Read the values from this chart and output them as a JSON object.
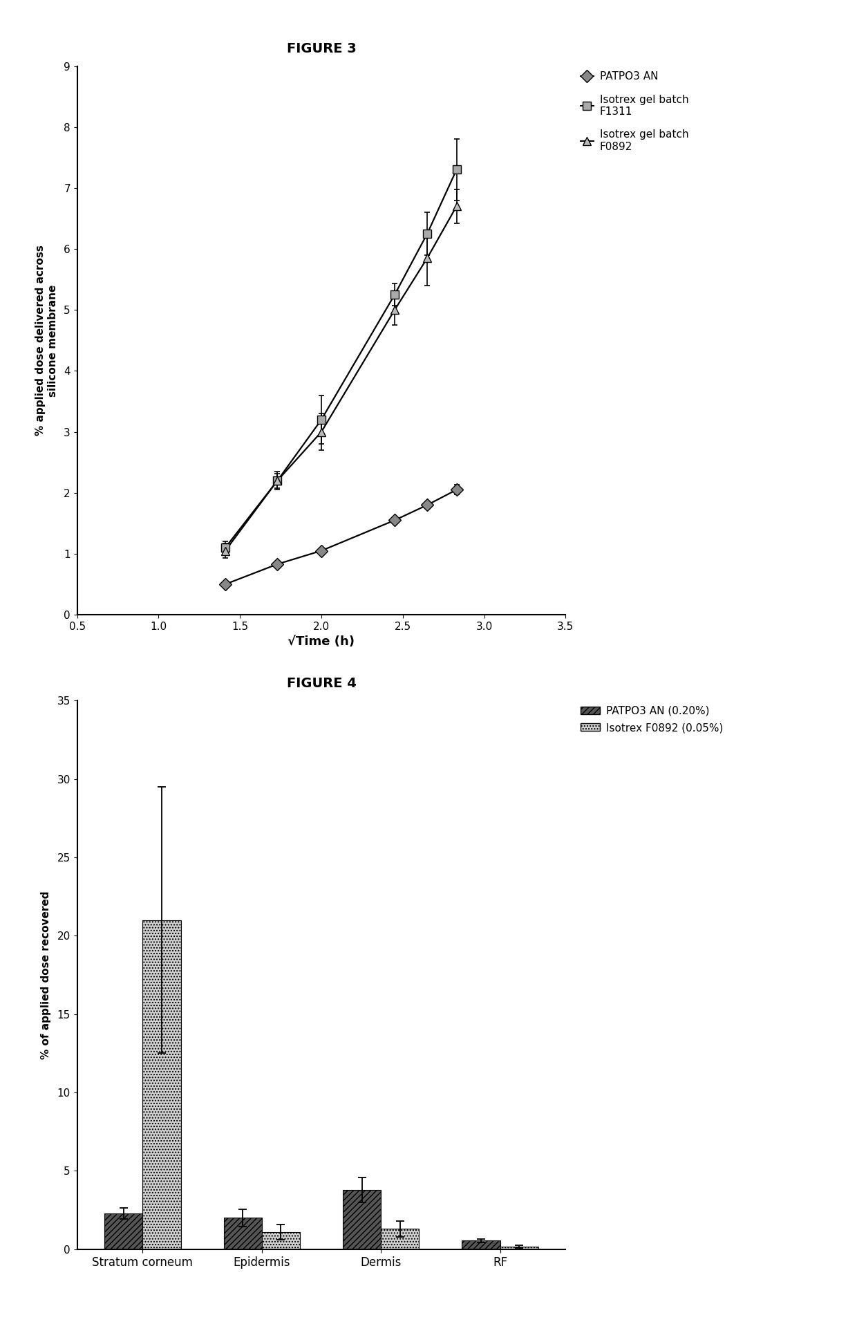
{
  "fig3_title": "FIGURE 3",
  "fig4_title": "FIGURE 4",
  "fig3_xlabel": "√Time (h)",
  "fig3_ylabel": "% applied dose delivered across\nsilicone membrane",
  "fig3_xlim": [
    0.5,
    3.5
  ],
  "fig3_ylim": [
    0,
    9
  ],
  "fig3_xticks": [
    0.5,
    1.0,
    1.5,
    2.0,
    2.5,
    3.0,
    3.5
  ],
  "fig3_yticks": [
    0,
    1,
    2,
    3,
    4,
    5,
    6,
    7,
    8,
    9
  ],
  "patp03_x": [
    1.41,
    1.73,
    2.0,
    2.45,
    2.65,
    2.83
  ],
  "patp03_y": [
    0.5,
    0.83,
    1.05,
    1.55,
    1.8,
    2.05
  ],
  "patp03_yerr": [
    0.03,
    0.0,
    0.04,
    0.04,
    0.05,
    0.08
  ],
  "f1311_x": [
    1.41,
    1.73,
    2.0,
    2.45,
    2.65,
    2.83
  ],
  "f1311_y": [
    1.1,
    2.2,
    3.2,
    5.25,
    6.25,
    7.3
  ],
  "f1311_yerr": [
    0.1,
    0.15,
    0.4,
    0.18,
    0.35,
    0.5
  ],
  "f0892_x": [
    1.41,
    1.73,
    2.0,
    2.45,
    2.65,
    2.83
  ],
  "f0892_y": [
    1.05,
    2.2,
    3.0,
    5.0,
    5.85,
    6.7
  ],
  "f0892_yerr": [
    0.12,
    0.12,
    0.3,
    0.25,
    0.45,
    0.28
  ],
  "fig3_legend": [
    "PATPO3 AN",
    "Isotrex gel batch\nF1311",
    "Isotrex gel batch\nF0892"
  ],
  "fig4_ylabel": "% of applied dose recovered",
  "fig4_ylim": [
    0,
    35
  ],
  "fig4_yticks": [
    0,
    5,
    10,
    15,
    20,
    25,
    30,
    35
  ],
  "fig4_categories": [
    "Stratum corneum",
    "Epidermis",
    "Dermis",
    "RF"
  ],
  "bar_patp03": [
    2.3,
    2.0,
    3.8,
    0.55
  ],
  "bar_patp03_err": [
    0.35,
    0.55,
    0.8,
    0.12
  ],
  "bar_isotrex": [
    21.0,
    1.1,
    1.3,
    0.18
  ],
  "bar_isotrex_err": [
    8.5,
    0.5,
    0.5,
    0.08
  ],
  "fig4_legend": [
    "PATPO3 AN (0.20%)",
    "Isotrex F0892 (0.05%)"
  ],
  "bg_color": "#ffffff"
}
